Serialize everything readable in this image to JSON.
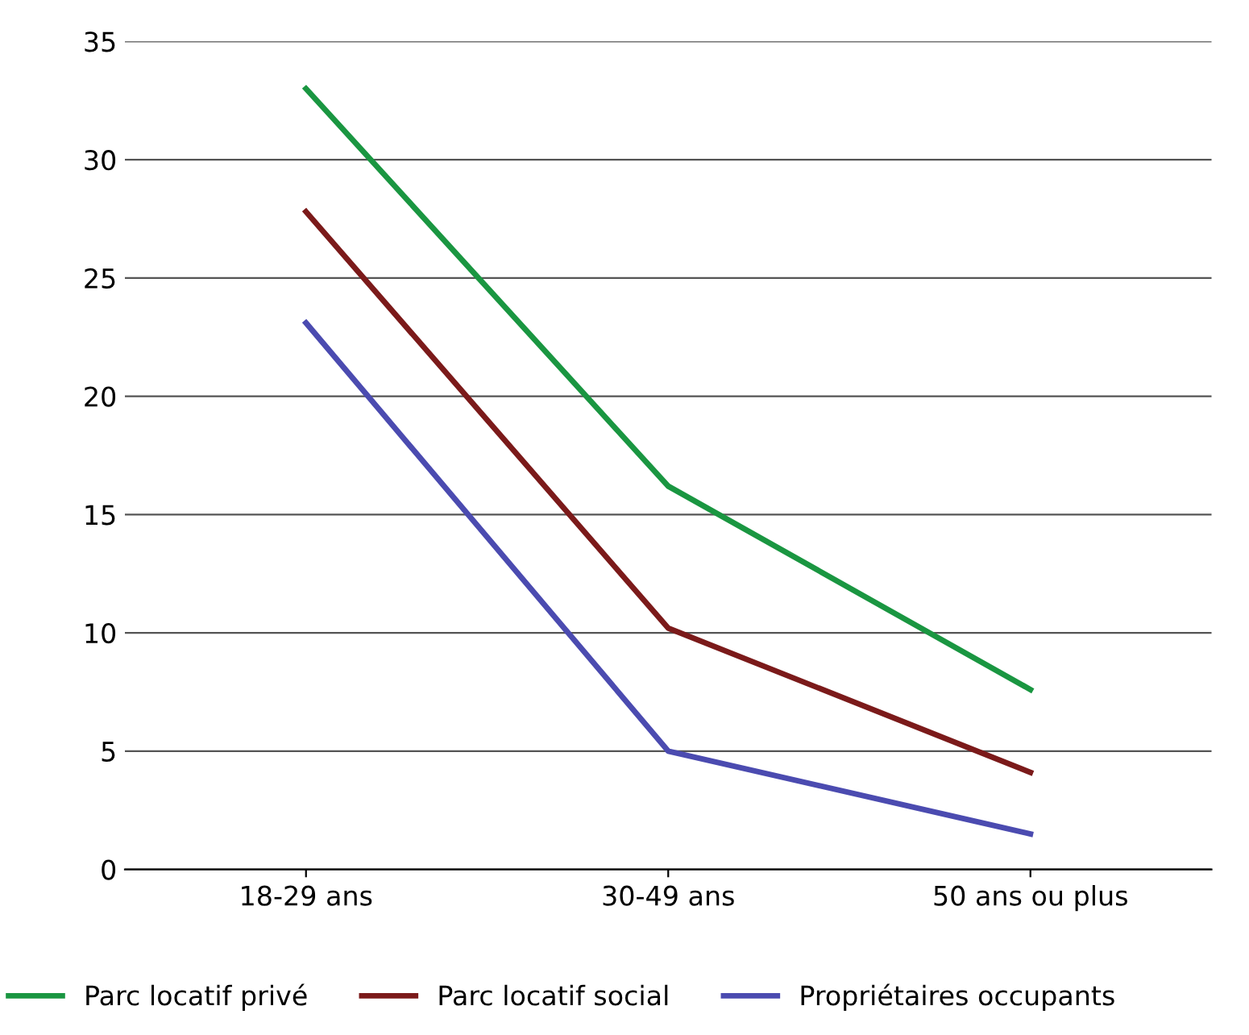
{
  "chart_data": {
    "type": "line",
    "categories": [
      "18-29 ans",
      "30-49 ans",
      "50 ans ou plus"
    ],
    "series": [
      {
        "name": "Parc locatif privé",
        "color": "#1a9641",
        "values": [
          33,
          16.2,
          7.6
        ]
      },
      {
        "name": "Parc locatif social",
        "color": "#7b1a1a",
        "values": [
          27.8,
          10.2,
          4.1
        ]
      },
      {
        "name": "Propriétaires occupants",
        "color": "#4b4bb0",
        "values": [
          23.1,
          5,
          1.5
        ]
      }
    ],
    "ylim": [
      0,
      35
    ],
    "yticks": [
      0,
      5,
      10,
      15,
      20,
      25,
      30,
      35
    ],
    "grid": "y",
    "legend": "bottom",
    "marker": "none",
    "line_style": "solid"
  }
}
